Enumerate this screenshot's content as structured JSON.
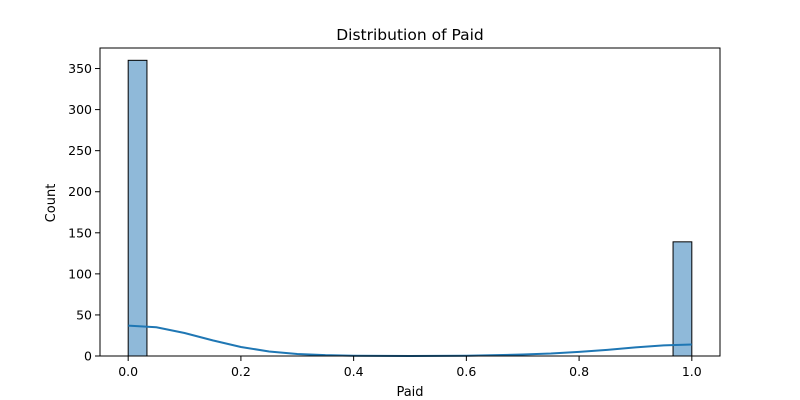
{
  "chart_data": {
    "type": "bar",
    "title": "Distribution of Paid",
    "xlabel": "Paid",
    "ylabel": "Count",
    "xlim": [
      -0.05,
      1.05
    ],
    "ylim": [
      0,
      375
    ],
    "xticks": [
      0.0,
      0.2,
      0.4,
      0.6,
      0.8,
      1.0
    ],
    "xtick_labels": [
      "0.0",
      "0.2",
      "0.4",
      "0.6",
      "0.8",
      "1.0"
    ],
    "yticks": [
      0,
      50,
      100,
      150,
      200,
      250,
      300,
      350
    ],
    "ytick_labels": [
      "0",
      "50",
      "100",
      "150",
      "200",
      "250",
      "300",
      "350"
    ],
    "grid": false,
    "bar_color": "#8fb9d9",
    "bar_edge_color": "#000000",
    "kde_color": "#1f77b4",
    "bins": [
      {
        "x0": 0.0,
        "x1": 0.0333,
        "count": 360
      },
      {
        "x0": 0.9667,
        "x1": 1.0,
        "count": 139
      }
    ],
    "kde": {
      "x": [
        0.0,
        0.05,
        0.1,
        0.15,
        0.2,
        0.25,
        0.3,
        0.35,
        0.4,
        0.5,
        0.6,
        0.7,
        0.75,
        0.8,
        0.85,
        0.9,
        0.95,
        1.0
      ],
      "y": [
        37,
        35,
        28,
        19,
        11,
        5.5,
        2.5,
        1,
        0.3,
        0,
        0.3,
        1.8,
        3,
        5,
        7.5,
        10.5,
        13,
        14
      ]
    }
  }
}
